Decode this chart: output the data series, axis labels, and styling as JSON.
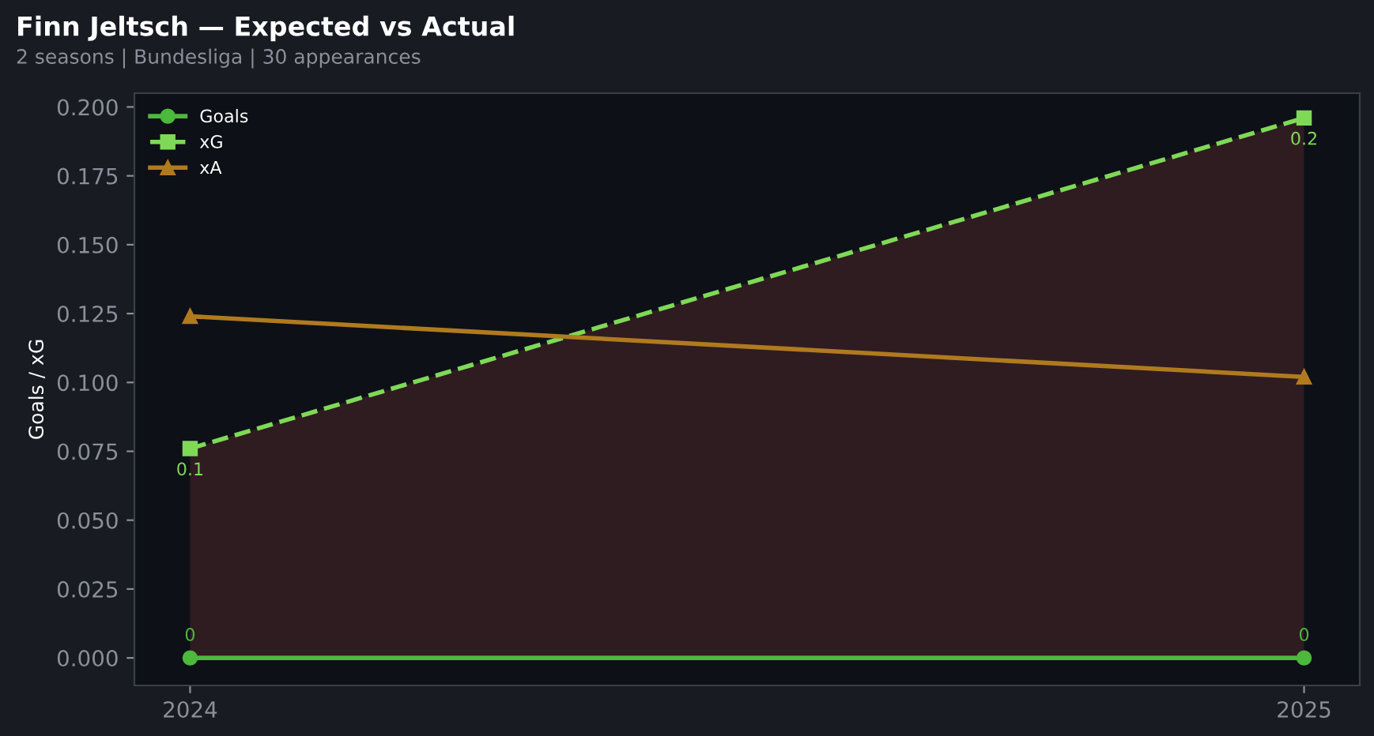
{
  "chart_data": {
    "type": "line",
    "title": "Finn Jeltsch — Expected vs Actual",
    "subtitle": "2 seasons | Bundesliga | 30 appearances",
    "ylabel": "Goals / xG",
    "x": [
      2024,
      2025
    ],
    "xlim": [
      2023.95,
      2025.05
    ],
    "xticks": [
      2024,
      2025
    ],
    "ylim": [
      -0.01,
      0.205
    ],
    "yticks": [
      {
        "value": 0,
        "label": "0.000"
      },
      {
        "value": 0.025,
        "label": "0.025"
      },
      {
        "value": 0.05,
        "label": "0.050"
      },
      {
        "value": 0.075,
        "label": "0.075"
      },
      {
        "value": 0.1,
        "label": "0.100"
      },
      {
        "value": 0.125,
        "label": "0.125"
      },
      {
        "value": 0.15,
        "label": "0.150"
      },
      {
        "value": 0.175,
        "label": "0.175"
      },
      {
        "value": 0.2,
        "label": "0.200"
      }
    ],
    "grid": false,
    "legend": "upper left",
    "series": [
      {
        "name": "Goals",
        "color": "#4cb83c",
        "marker": "circle",
        "line_style": "solid",
        "values": [
          0,
          0
        ],
        "value_labels": [
          "0",
          "0"
        ]
      },
      {
        "name": "xG",
        "type": "area",
        "color": "#7ed957",
        "marker": "square",
        "line_style": "dashed",
        "values": [
          0.076,
          0.196
        ],
        "value_labels": [
          "0.1",
          "0.2"
        ]
      },
      {
        "name": "xA",
        "color": "#b07a1e",
        "marker": "triangle",
        "line_style": "solid",
        "values": [
          0.124,
          0.102
        ]
      }
    ]
  }
}
